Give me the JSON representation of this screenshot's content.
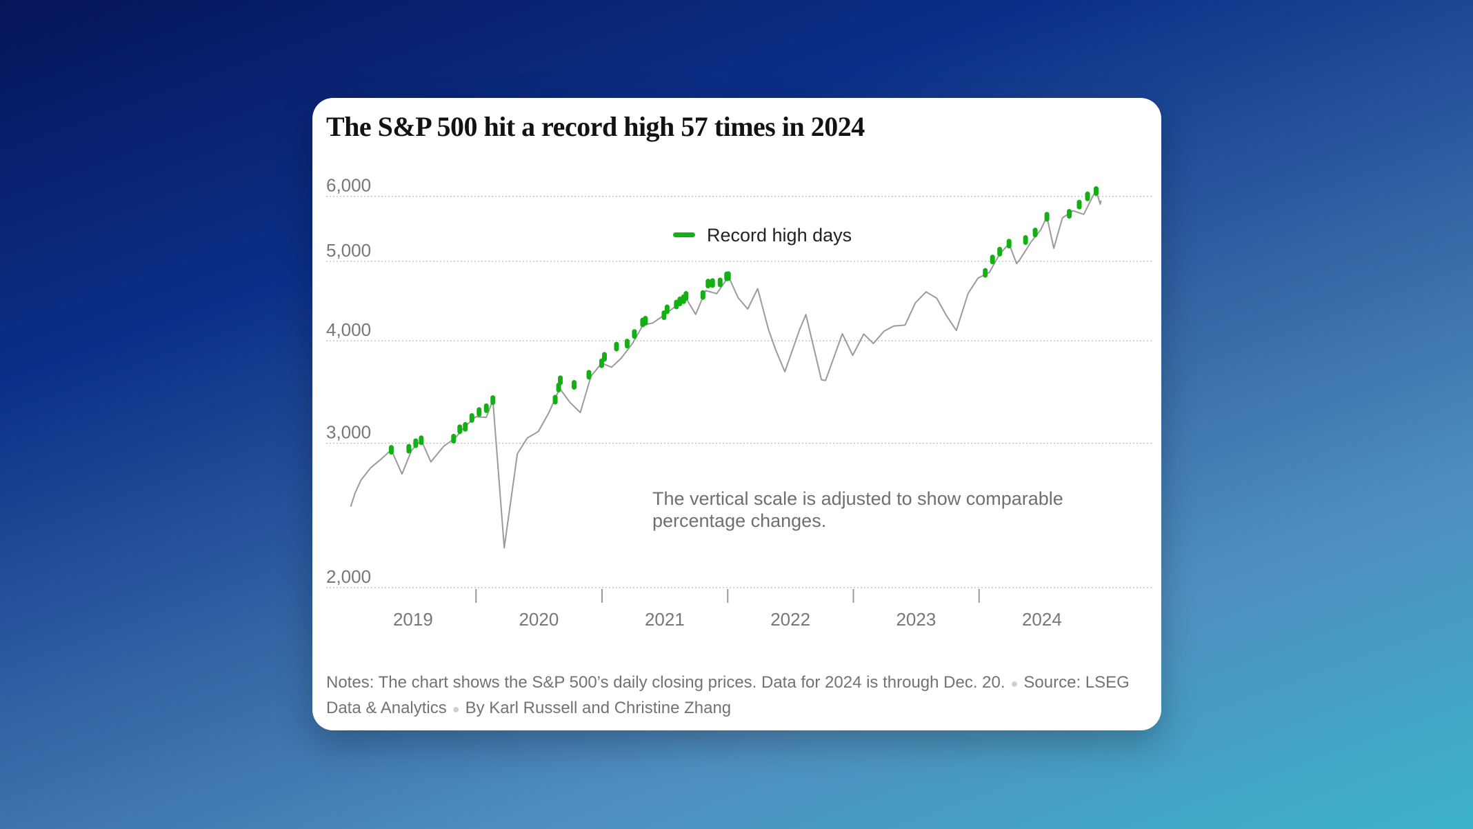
{
  "title": "The S&P 500 hit a record high 57 times in 2024",
  "notes": {
    "notes_text": "Notes: The chart shows the S&P 500’s daily closing prices. Data for 2024 is through Dec. 20.",
    "source_text": "Source: LSEG Data & Analytics",
    "byline": "By Karl Russell and Christine Zhang"
  },
  "colors": {
    "line": "#9a9a9a",
    "record": "#13b013",
    "grid": "#b9b9b9",
    "axis_text": "#777777"
  },
  "chart_data": {
    "type": "line",
    "title": "The S&P 500 hit a record high 57 times in 2024",
    "y_scale": "log",
    "ylim": [
      2000,
      6150
    ],
    "yticks": [
      2000,
      3000,
      4000,
      5000,
      6000
    ],
    "ytick_labels": [
      "2,000",
      "3,000",
      "4,000",
      "5,000",
      "6,000"
    ],
    "xlim": [
      "2019-01-01",
      "2024-12-31"
    ],
    "xtick_labels": [
      "2019",
      "2020",
      "2021",
      "2022",
      "2023",
      "2024"
    ],
    "legend": {
      "label": "Record high days",
      "placement": "top-center"
    },
    "annotation": "The vertical scale is adjusted to show comparable percentage changes.",
    "series": [
      {
        "name": "S&P 500",
        "x": [
          "2019-01-02",
          "2019-01-15",
          "2019-02-01",
          "2019-03-01",
          "2019-04-01",
          "2019-04-30",
          "2019-05-31",
          "2019-06-28",
          "2019-07-26",
          "2019-08-23",
          "2019-09-30",
          "2019-10-31",
          "2019-11-29",
          "2019-12-31",
          "2020-01-31",
          "2020-02-19",
          "2020-03-23",
          "2020-04-30",
          "2020-05-29",
          "2020-06-30",
          "2020-07-31",
          "2020-08-31",
          "2020-09-30",
          "2020-10-30",
          "2020-11-30",
          "2020-12-31",
          "2021-01-29",
          "2021-02-26",
          "2021-03-31",
          "2021-04-30",
          "2021-05-28",
          "2021-06-30",
          "2021-07-30",
          "2021-08-31",
          "2021-09-30",
          "2021-10-29",
          "2021-11-30",
          "2021-12-31",
          "2022-01-03",
          "2022-01-31",
          "2022-02-28",
          "2022-03-29",
          "2022-04-29",
          "2022-05-20",
          "2022-06-16",
          "2022-07-29",
          "2022-08-16",
          "2022-09-30",
          "2022-10-12",
          "2022-11-30",
          "2022-12-30",
          "2023-01-31",
          "2023-02-28",
          "2023-03-31",
          "2023-04-28",
          "2023-05-31",
          "2023-06-30",
          "2023-07-31",
          "2023-08-31",
          "2023-09-29",
          "2023-10-27",
          "2023-11-30",
          "2023-12-29",
          "2024-01-31",
          "2024-02-29",
          "2024-03-28",
          "2024-04-19",
          "2024-04-30",
          "2024-05-31",
          "2024-06-28",
          "2024-07-16",
          "2024-08-05",
          "2024-08-30",
          "2024-09-30",
          "2024-10-31",
          "2024-11-29",
          "2024-12-06",
          "2024-12-18",
          "2024-12-20"
        ],
        "y": [
          2510,
          2610,
          2705,
          2800,
          2870,
          2945,
          2752,
          2942,
          3025,
          2847,
          2977,
          3038,
          3141,
          3231,
          3226,
          3386,
          2237,
          2912,
          3044,
          3100,
          3271,
          3500,
          3363,
          3270,
          3622,
          3756,
          3714,
          3811,
          3973,
          4181,
          4204,
          4298,
          4395,
          4523,
          4308,
          4605,
          4567,
          4766,
          4796,
          4516,
          4374,
          4631,
          4132,
          3901,
          3667,
          4130,
          4305,
          3586,
          3577,
          4080,
          3840,
          4077,
          3970,
          4109,
          4169,
          4180,
          4450,
          4589,
          4508,
          4288,
          4117,
          4568,
          4770,
          4846,
          5096,
          5254,
          4967,
          5036,
          5278,
          5460,
          5667,
          5186,
          5648,
          5762,
          5705,
          6032,
          6090,
          5872,
          5930
        ]
      },
      {
        "name": "Record high days",
        "x": [
          "2019-04-30",
          "2019-06-20",
          "2019-07-10",
          "2019-07-26",
          "2019-10-28",
          "2019-11-15",
          "2019-12-01",
          "2019-12-20",
          "2020-01-10",
          "2020-01-31",
          "2020-02-19",
          "2020-08-18",
          "2020-08-28",
          "2020-09-02",
          "2020-10-12",
          "2020-11-24",
          "2020-12-31",
          "2021-01-08",
          "2021-02-12",
          "2021-03-15",
          "2021-04-05",
          "2021-04-29",
          "2021-05-07",
          "2021-06-30",
          "2021-07-09",
          "2021-08-05",
          "2021-08-15",
          "2021-08-26",
          "2021-09-02",
          "2021-10-21",
          "2021-11-05",
          "2021-11-18",
          "2021-12-10",
          "2021-12-29",
          "2022-01-03",
          "2024-01-19",
          "2024-02-09",
          "2024-03-01",
          "2024-03-28",
          "2024-05-15",
          "2024-06-12",
          "2024-07-16",
          "2024-09-19",
          "2024-10-18",
          "2024-11-11",
          "2024-12-06"
        ],
        "y": [
          2945,
          2954,
          3000,
          3025,
          3039,
          3120,
          3141,
          3221,
          3275,
          3310,
          3386,
          3390,
          3508,
          3580,
          3534,
          3636,
          3756,
          3824,
          3935,
          3969,
          4077,
          4211,
          4232,
          4298,
          4369,
          4429,
          4468,
          4496,
          4537,
          4549,
          4697,
          4704,
          4712,
          4793,
          4796,
          4840,
          5026,
          5137,
          5254,
          5308,
          5421,
          5667,
          5714,
          5864,
          6001,
          6090
        ]
      }
    ]
  }
}
